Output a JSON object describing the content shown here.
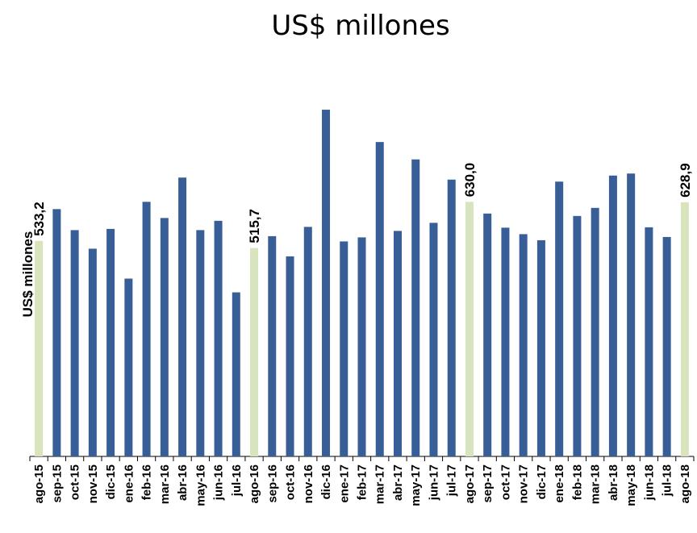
{
  "chart_data": {
    "type": "bar",
    "title": "US$ millones",
    "ylabel": "US$ millones",
    "xlabel": "",
    "categories": [
      "ago-15",
      "sep-15",
      "oct-15",
      "nov-15",
      "dic-15",
      "ene-16",
      "feb-16",
      "mar-16",
      "abr-16",
      "may-16",
      "jun-16",
      "jul-16",
      "ago-16",
      "sep-16",
      "oct-16",
      "nov-16",
      "dic-16",
      "ene-17",
      "feb-17",
      "mar-17",
      "abr-17",
      "may-17",
      "jun-17",
      "jul-17",
      "ago-17",
      "sep-17",
      "oct-17",
      "nov-17",
      "dic-17",
      "ene-18",
      "feb-18",
      "mar-18",
      "abr-18",
      "may-18",
      "jun-18",
      "jul-18",
      "ago-18"
    ],
    "values": [
      533.2,
      612,
      560,
      514,
      563,
      440,
      630,
      590,
      690,
      560,
      583,
      406,
      515.7,
      545,
      495,
      568,
      858,
      532,
      542,
      778,
      558,
      735,
      578,
      685,
      630,
      601,
      566,
      550,
      535,
      680,
      595,
      615,
      695,
      700,
      567,
      543,
      628.9
    ],
    "highlight_indices": [
      0,
      12,
      24,
      36
    ],
    "data_labels": {
      "0": "533,2",
      "12": "515,7",
      "24": "630,0",
      "36": "628,9"
    },
    "ylim": [
      0,
      900
    ],
    "grid": false,
    "legend": "none",
    "colors": {
      "bar": "#375E97",
      "highlight": "#D7E4BD"
    }
  }
}
